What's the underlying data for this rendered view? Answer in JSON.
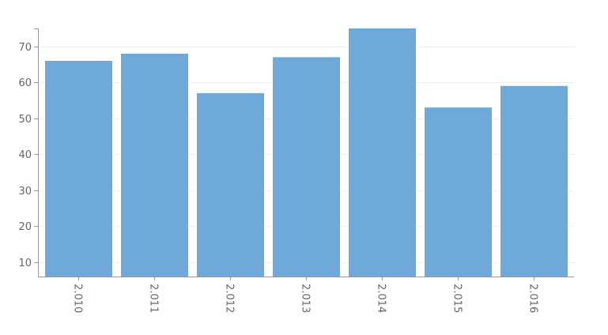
{
  "chart_data": {
    "type": "bar",
    "title": "",
    "xlabel": "",
    "ylabel": "",
    "categories": [
      "2.010",
      "2.011",
      "2.012",
      "2.013",
      "2.014",
      "2.015",
      "2.016"
    ],
    "values": [
      66,
      68,
      57,
      67,
      75,
      53,
      59
    ],
    "ylim": [
      6,
      75
    ],
    "yticks": [
      10,
      20,
      30,
      40,
      50,
      60,
      70
    ],
    "grid": true,
    "legend": "none",
    "bar_color": "#6fa9d9",
    "axis_color": "#999999",
    "grid_color": "#eeeeee",
    "label_color": "#666666"
  }
}
